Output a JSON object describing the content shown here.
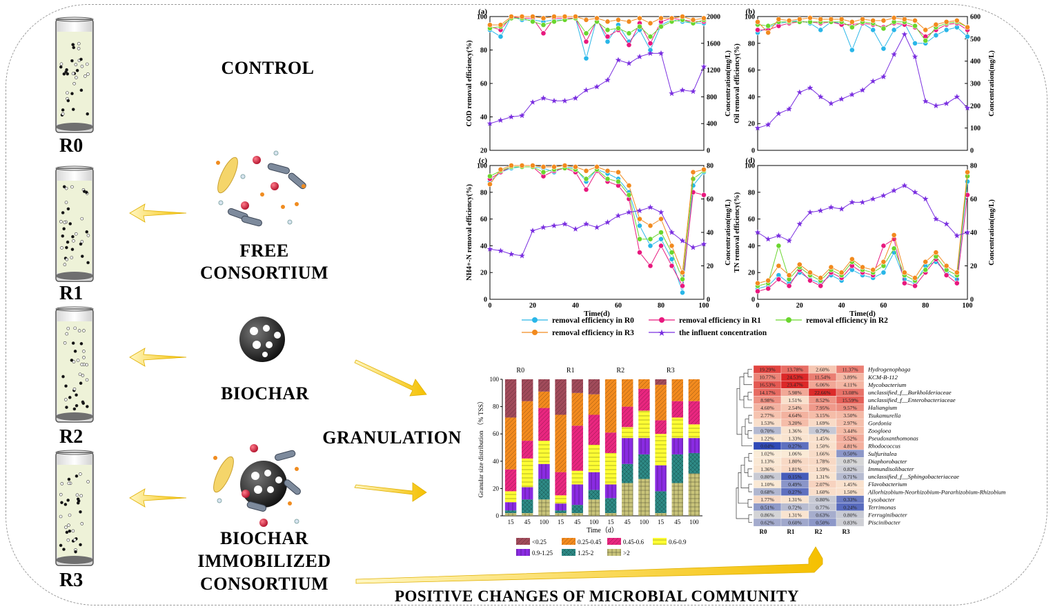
{
  "labels": {
    "control": "CONTROL",
    "free_consortium": [
      "FREE",
      "CONSORTIUM"
    ],
    "biochar": "BIOCHAR",
    "immobilized": [
      "BIOCHAR",
      "IMMOBILIZED",
      "CONSORTIUM"
    ],
    "granulation": "GRANULATION",
    "positive_changes": "POSITIVE CHANGES OF MICROBIAL COMMUNITY",
    "reactors": [
      "R0",
      "R1",
      "R2",
      "R3"
    ]
  },
  "colors": {
    "r0": "#29b6e8",
    "r1": "#e8187e",
    "r2": "#6ad62e",
    "r3": "#f28a1e",
    "influent": "#7a2fe0",
    "arrow": "#f5c000"
  },
  "chart_data": [
    {
      "id": "a",
      "type": "line",
      "panel_label": "(a)",
      "xlabel": "",
      "ylabel": "COD removal efficiency(%)",
      "y2label": "Concentration(mg/L)",
      "xlim": [
        0,
        100
      ],
      "ylim": [
        20,
        100
      ],
      "y2lim": [
        0,
        2000
      ],
      "yticks": [
        20,
        40,
        60,
        80,
        100
      ],
      "y2ticks": [
        0,
        400,
        800,
        1200,
        1600,
        2000
      ],
      "xticks": [],
      "x": [
        0,
        5,
        10,
        15,
        20,
        25,
        30,
        35,
        40,
        45,
        50,
        55,
        60,
        65,
        70,
        75,
        80,
        85,
        90,
        95,
        100
      ],
      "series": [
        {
          "key": "r0",
          "values": [
            92,
            88,
            100,
            98,
            98,
            97,
            98,
            98,
            99,
            75,
            99,
            85,
            95,
            85,
            92,
            80,
            95,
            98,
            97,
            96,
            96
          ]
        },
        {
          "key": "r1",
          "values": [
            94,
            92,
            100,
            99,
            99,
            90,
            99,
            99,
            99,
            85,
            98,
            88,
            92,
            83,
            96,
            84,
            97,
            99,
            98,
            97,
            97
          ]
        },
        {
          "key": "r2",
          "values": [
            93,
            94,
            99,
            99,
            97,
            95,
            97,
            98,
            99,
            90,
            97,
            92,
            93,
            90,
            94,
            88,
            94,
            97,
            98,
            96,
            98
          ]
        },
        {
          "key": "r3",
          "values": [
            95,
            95,
            100,
            100,
            100,
            99,
            100,
            100,
            100,
            98,
            99,
            97,
            98,
            97,
            99,
            96,
            99,
            99,
            100,
            98,
            99
          ]
        },
        {
          "key": "influent",
          "axis": "y2",
          "values": [
            400,
            450,
            500,
            520,
            720,
            780,
            740,
            740,
            780,
            900,
            950,
            1050,
            1350,
            1300,
            1400,
            1450,
            1450,
            850,
            900,
            880,
            1250
          ]
        }
      ]
    },
    {
      "id": "b",
      "type": "line",
      "panel_label": "(b)",
      "xlabel": "",
      "ylabel": "Oil removal efficiency(%)",
      "y2label": "Concentration(mg/L)",
      "xlim": [
        0,
        100
      ],
      "ylim": [
        0,
        100
      ],
      "y2lim": [
        0,
        600
      ],
      "yticks": [
        0,
        20,
        40,
        60,
        80,
        100
      ],
      "y2ticks": [
        0,
        100,
        200,
        300,
        400,
        500,
        600
      ],
      "xticks": [],
      "x": [
        0,
        5,
        10,
        15,
        20,
        25,
        30,
        35,
        40,
        45,
        50,
        55,
        60,
        65,
        70,
        75,
        80,
        85,
        90,
        95,
        100
      ],
      "series": [
        {
          "key": "r0",
          "values": [
            88,
            92,
            95,
            96,
            97,
            95,
            90,
            96,
            95,
            75,
            95,
            90,
            76,
            90,
            95,
            80,
            80,
            86,
            90,
            92,
            85
          ]
        },
        {
          "key": "r1",
          "values": [
            90,
            90,
            93,
            95,
            96,
            96,
            95,
            96,
            94,
            94,
            95,
            94,
            92,
            95,
            94,
            92,
            85,
            90,
            94,
            95,
            90
          ]
        },
        {
          "key": "r2",
          "values": [
            94,
            93,
            96,
            96,
            96,
            96,
            96,
            96,
            96,
            92,
            96,
            95,
            91,
            96,
            96,
            93,
            82,
            92,
            95,
            96,
            92
          ]
        },
        {
          "key": "r3",
          "values": [
            96,
            88,
            98,
            97,
            98,
            99,
            98,
            98,
            98,
            96,
            98,
            97,
            97,
            99,
            98,
            97,
            90,
            94,
            96,
            97,
            92
          ]
        },
        {
          "key": "influent",
          "axis": "y2",
          "values": [
            100,
            115,
            165,
            185,
            260,
            280,
            240,
            210,
            230,
            250,
            270,
            310,
            330,
            430,
            520,
            420,
            220,
            200,
            210,
            240,
            190
          ]
        }
      ]
    },
    {
      "id": "c",
      "type": "line",
      "panel_label": "(c)",
      "xlabel": "Time(d)",
      "ylabel": "NH4+-N removal efficiency(%)",
      "y2label": "Concentration(mg/L)",
      "xlim": [
        0,
        100
      ],
      "ylim": [
        0,
        100
      ],
      "y2lim": [
        0,
        80
      ],
      "yticks": [
        0,
        20,
        40,
        60,
        80,
        100
      ],
      "y2ticks": [
        0,
        20,
        40,
        60,
        80
      ],
      "xticks": [
        0,
        20,
        40,
        60,
        80,
        100
      ],
      "x": [
        0,
        5,
        10,
        15,
        20,
        25,
        30,
        35,
        40,
        45,
        50,
        55,
        60,
        65,
        70,
        75,
        80,
        85,
        90,
        95,
        100
      ],
      "series": [
        {
          "key": "r0",
          "values": [
            88,
            95,
            98,
            99,
            99,
            98,
            95,
            99,
            98,
            88,
            97,
            94,
            90,
            80,
            55,
            40,
            45,
            30,
            5,
            85,
            95
          ]
        },
        {
          "key": "r1",
          "values": [
            90,
            95,
            99,
            99,
            99,
            92,
            96,
            98,
            95,
            82,
            96,
            88,
            85,
            75,
            35,
            25,
            40,
            25,
            10,
            80,
            78
          ]
        },
        {
          "key": "r2",
          "values": [
            92,
            96,
            99,
            99,
            99,
            95,
            97,
            98,
            97,
            90,
            97,
            90,
            88,
            78,
            45,
            45,
            50,
            35,
            15,
            90,
            96
          ]
        },
        {
          "key": "r3",
          "values": [
            86,
            97,
            100,
            100,
            100,
            99,
            99,
            100,
            99,
            96,
            99,
            96,
            95,
            85,
            60,
            55,
            60,
            40,
            20,
            95,
            97
          ]
        },
        {
          "key": "influent",
          "axis": "y2",
          "values": [
            30,
            29,
            27,
            26,
            41,
            43,
            44,
            45,
            42,
            45,
            43,
            46,
            50,
            52,
            53,
            55,
            52,
            40,
            35,
            31,
            33
          ]
        }
      ]
    },
    {
      "id": "d",
      "type": "line",
      "panel_label": "(d)",
      "xlabel": "Time(d)",
      "ylabel": "TN removal efficiency(%)",
      "y2label": "Concentration(mg/L)",
      "xlim": [
        0,
        100
      ],
      "ylim": [
        0,
        100
      ],
      "y2lim": [
        0,
        80
      ],
      "yticks": [
        0,
        20,
        40,
        60,
        80,
        100
      ],
      "y2ticks": [
        0,
        20,
        40,
        60,
        80
      ],
      "xticks": [
        0,
        20,
        40,
        60,
        80,
        100
      ],
      "x": [
        0,
        5,
        10,
        15,
        20,
        25,
        30,
        35,
        40,
        45,
        50,
        55,
        60,
        65,
        70,
        75,
        80,
        85,
        90,
        95,
        100
      ],
      "series": [
        {
          "key": "r0",
          "values": [
            8,
            10,
            18,
            12,
            20,
            15,
            12,
            18,
            14,
            22,
            18,
            16,
            20,
            35,
            15,
            12,
            25,
            28,
            20,
            15,
            88
          ]
        },
        {
          "key": "r1",
          "values": [
            6,
            8,
            15,
            10,
            22,
            14,
            10,
            20,
            16,
            25,
            20,
            18,
            40,
            45,
            12,
            10,
            20,
            30,
            18,
            12,
            78
          ]
        },
        {
          "key": "r2",
          "values": [
            10,
            12,
            40,
            15,
            24,
            18,
            14,
            22,
            18,
            28,
            22,
            20,
            25,
            38,
            18,
            14,
            22,
            32,
            22,
            18,
            92
          ]
        },
        {
          "key": "r3",
          "values": [
            12,
            14,
            25,
            18,
            26,
            20,
            16,
            24,
            20,
            30,
            24,
            22,
            28,
            48,
            20,
            16,
            28,
            35,
            25,
            20,
            95
          ]
        },
        {
          "key": "influent",
          "axis": "y2",
          "values": [
            40,
            36,
            38,
            35,
            45,
            52,
            53,
            55,
            54,
            58,
            58,
            60,
            62,
            65,
            68,
            64,
            60,
            48,
            45,
            38,
            40
          ]
        }
      ]
    },
    {
      "id": "e",
      "type": "bar",
      "stacked": true,
      "ylabel": "Granular size distribution （% TSS）",
      "xlabel": "Time（d）",
      "ylim": [
        0,
        100
      ],
      "yticks": [
        0,
        20,
        40,
        60,
        80,
        100
      ],
      "groups": [
        "R0",
        "R1",
        "R2",
        "R3"
      ],
      "categories": [
        "15",
        "45",
        "100",
        "15",
        "45",
        "100",
        "15",
        "45",
        "100",
        "15",
        "45",
        "100"
      ],
      "series": [
        {
          "name": ">2",
          "color": "#c9c47a",
          "values": [
            2,
            2,
            12,
            2,
            2,
            12,
            2,
            24,
            27,
            2,
            24,
            31
          ]
        },
        {
          "name": "1.25-2",
          "color": "#2d8a86",
          "values": [
            2,
            10,
            15,
            2,
            6,
            7,
            11,
            14,
            18,
            16,
            21,
            15
          ]
        },
        {
          "name": "0.9-1.25",
          "color": "#8a2be2",
          "values": [
            6,
            9,
            11,
            5,
            15,
            13,
            10,
            19,
            12,
            19,
            12,
            11
          ]
        },
        {
          "name": "0.6-0.9",
          "color": "#ffff33",
          "values": [
            8,
            21,
            17,
            6,
            10,
            20,
            23,
            8,
            20,
            23,
            15,
            10
          ]
        },
        {
          "name": "0.45-0.6",
          "color": "#e8267f",
          "values": [
            16,
            13,
            24,
            17,
            33,
            22,
            15,
            15,
            16,
            10,
            12,
            17
          ]
        },
        {
          "name": "0.25-0.45",
          "color": "#f28a1e",
          "values": [
            38,
            29,
            12,
            42,
            24,
            15,
            39,
            20,
            7,
            26,
            16,
            16
          ]
        },
        {
          "name": "<0.25",
          "color": "#a04a5a",
          "values": [
            28,
            16,
            9,
            26,
            10,
            11,
            0,
            0,
            0,
            4,
            0,
            0
          ]
        }
      ]
    },
    {
      "id": "f",
      "type": "heatmap",
      "columns": [
        "R0",
        "R1",
        "R2",
        "R3"
      ],
      "rows": [
        "Hydrogenophaga",
        "KCM-B-112",
        "Mycobacterium",
        "unclassified_f__Burkholderiaceae",
        "unclassified_f__Enterobacteriaceae",
        "Haliangium",
        "Tsukamurella",
        "Gordonia",
        "Zoogloea",
        "Pseudoxanthomonas",
        "Rhodococcus",
        "Sulfuritalea",
        "Diaphorobacter",
        "Immundisolibacter",
        "unclassified_f__Sphingobacteriaceae",
        "Flavobacterium",
        "Allorhizobium-Neorhizobium-Pararhizobium-Rhizobium",
        "Lysobacter",
        "Terrimonas",
        "Ferruginibacter",
        "Piscinibacter"
      ],
      "values": [
        [
          "19.29%",
          "13.78%",
          "2.60%",
          "11.37%"
        ],
        [
          "10.77%",
          "24.53%",
          "11.54%",
          "3.89%"
        ],
        [
          "16.53%",
          "23.47%",
          "6.06%",
          "4.11%"
        ],
        [
          "14.17%",
          "5.98%",
          "22.66%",
          "13.08%"
        ],
        [
          "8.98%",
          "1.51%",
          "8.52%",
          "15.59%"
        ],
        [
          "4.60%",
          "2.54%",
          "7.95%",
          "9.57%"
        ],
        [
          "2.77%",
          "4.64%",
          "3.15%",
          "3.50%"
        ],
        [
          "1.53%",
          "3.20%",
          "1.69%",
          "2.97%"
        ],
        [
          "0.70%",
          "1.36%",
          "0.79%",
          "3.44%"
        ],
        [
          "1.22%",
          "1.33%",
          "1.45%",
          "5.52%"
        ],
        [
          "0.04%",
          "0.27%",
          "1.50%",
          "4.81%"
        ],
        [
          "1.02%",
          "1.06%",
          "1.66%",
          "0.50%"
        ],
        [
          "1.13%",
          "1.80%",
          "1.78%",
          "0.87%"
        ],
        [
          "1.36%",
          "1.81%",
          "1.59%",
          "0.82%"
        ],
        [
          "0.80%",
          "0.15%",
          "1.31%",
          "0.71%"
        ],
        [
          "1.10%",
          "0.49%",
          "2.07%",
          "1.45%"
        ],
        [
          "0.68%",
          "0.27%",
          "1.60%",
          "1.50%"
        ],
        [
          "1.77%",
          "1.31%",
          "0.80%",
          "0.33%"
        ],
        [
          "0.51%",
          "0.72%",
          "0.77%",
          "0.24%"
        ],
        [
          "0.86%",
          "1.31%",
          "0.63%",
          "0.80%"
        ],
        [
          "0.62%",
          "0.60%",
          "0.50%",
          "0.83%"
        ]
      ]
    }
  ],
  "legend": {
    "r0": "removal efficiency in R0",
    "r1": "removal efficiency in R1",
    "r2": "removal efficiency in R2",
    "r3": "removal efficiency in R3",
    "influent": "the influent concentration"
  }
}
